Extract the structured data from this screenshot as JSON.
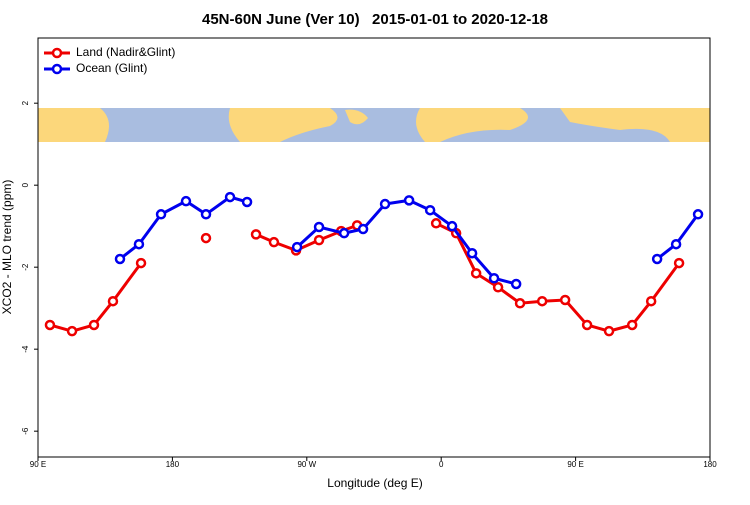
{
  "chart_data": {
    "type": "line",
    "title": "45N-60N June (Ver 10)   2015-01-01 to 2020-12-18",
    "x_label": "Longitude (deg E)",
    "y_label": "XCO2 - MLO trend (ppm)",
    "xlim": [
      90,
      540
    ],
    "xticks": [
      {
        "value": 90,
        "label": "90 E"
      },
      180,
      {
        "value": 270,
        "label": "90 W"
      },
      {
        "value": 360,
        "label": "0"
      },
      {
        "value": 450,
        "label": "90 E"
      },
      {
        "value": 540,
        "label": "180"
      }
    ],
    "ylim": [
      -6.63,
      3.59
    ],
    "yticks": [
      -6,
      -4,
      -2,
      0,
      2
    ],
    "legend": "top-left",
    "series": [
      {
        "name": "Land (Nadir&Glint)",
        "color": "#ee0000",
        "x": [
          98,
          112.8,
          127.5,
          140.2,
          159,
          null,
          202.5,
          null,
          236,
          248,
          262.8,
          278.2,
          293,
          303.7,
          null,
          356.6,
          370,
          383.4,
          398.1,
          412.8,
          427.6,
          443,
          457.7,
          472.4,
          487.9,
          500.6,
          519.3
        ],
        "values": [
          -3.41,
          -3.56,
          -3.41,
          -2.83,
          -1.9,
          null,
          -1.29,
          null,
          -1.2,
          -1.39,
          -1.59,
          -1.34,
          -1.12,
          -0.98,
          null,
          -0.93,
          -1.17,
          -2.15,
          -2.49,
          -2.88,
          -2.83,
          -2.8,
          -3.41,
          -3.56,
          -3.41,
          -2.83,
          -1.9
        ]
      },
      {
        "name": "Ocean (Glint)",
        "color": "#0000ee",
        "x": [
          144.9,
          157.6,
          172.4,
          189.1,
          202.5,
          218.6,
          230,
          null,
          263.5,
          278.2,
          295,
          307.7,
          322.4,
          338.5,
          352.6,
          367.3,
          380.7,
          395.4,
          410.2,
          null,
          504.6,
          517.3,
          532
        ],
        "values": [
          -1.8,
          -1.44,
          -0.71,
          -0.39,
          -0.71,
          -0.29,
          -0.41,
          null,
          -1.51,
          -1.02,
          -1.17,
          -1.07,
          -0.46,
          -0.37,
          -0.61,
          -1.0,
          -1.66,
          -2.27,
          -2.41,
          null,
          -1.8,
          -1.44,
          -0.71
        ]
      }
    ]
  }
}
